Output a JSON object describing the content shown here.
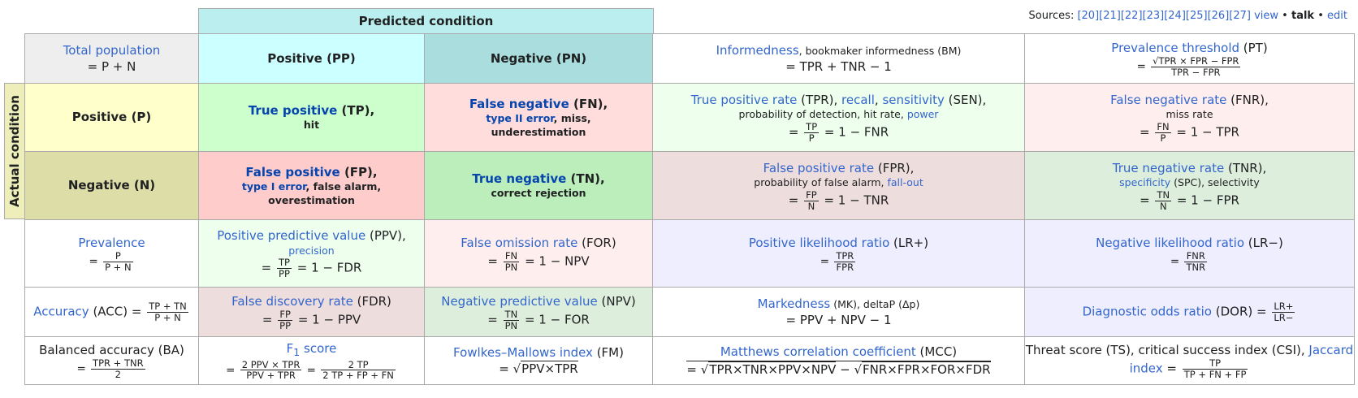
{
  "sources": {
    "label": "Sources:",
    "refs": "[20][21][22][23][24][25][26][27]",
    "view": "view",
    "sep1": "•",
    "talk": "talk",
    "sep2": "•",
    "edit": "edit"
  },
  "headers": {
    "predicted": "Predicted condition",
    "actual": "Actual condition"
  },
  "row0": {
    "total_label": "Total population",
    "total_formula": "= P + N",
    "pp": "Positive (PP)",
    "pn": "Negative (PN)",
    "bm_name": "Informedness",
    "bm_rest": ", bookmaker informedness (BM)",
    "bm_formula": "= TPR + TNR − 1",
    "pt_name": "Prevalence threshold",
    "pt_abbr": " (PT)",
    "pt_eq": "=",
    "pt_num": "√TPR × FPR − FPR",
    "pt_den": "TPR − FPR"
  },
  "row1": {
    "label": "Positive (P)",
    "tp_name": "True positive",
    "tp_abbr": " (TP),",
    "tp_alt": "hit",
    "fn_name": "False negative",
    "fn_abbr": " (FN),",
    "fn_alt1": "type II error",
    "fn_alt2": ", miss,",
    "fn_alt3": "underestimation",
    "tpr_name": "True positive rate",
    "tpr_abbr": " (TPR), ",
    "tpr_recall": "recall",
    "tpr_comma": ", ",
    "tpr_sens": "sensitivity",
    "tpr_sen": " (SEN),",
    "tpr_l2": "probability of detection, hit rate, ",
    "tpr_power": "power",
    "tpr_eq": "=",
    "tpr_num": "TP",
    "tpr_den": "P",
    "tpr_tail": "= 1 − FNR",
    "fnr_name": "False negative rate",
    "fnr_abbr": " (FNR),",
    "fnr_l2": "miss rate",
    "fnr_eq": "=",
    "fnr_num": "FN",
    "fnr_den": "P",
    "fnr_tail": "= 1 − TPR"
  },
  "row2": {
    "label": "Negative (N)",
    "fp_name": "False positive",
    "fp_abbr": " (FP),",
    "fp_alt1": "type I error",
    "fp_alt2": ", false alarm,",
    "fp_alt3": "overestimation",
    "tn_name": "True negative",
    "tn_abbr": " (TN),",
    "tn_alt": "correct rejection",
    "fpr_name": "False positive rate",
    "fpr_abbr": " (FPR),",
    "fpr_l2": "probability of false alarm, ",
    "fpr_fallout": "fall-out",
    "fpr_eq": "=",
    "fpr_num": "FP",
    "fpr_den": "N",
    "fpr_tail": "= 1 − TNR",
    "tnr_name": "True negative rate",
    "tnr_abbr": " (TNR),",
    "tnr_spec": "specificity",
    "tnr_l2": " (SPC), selectivity",
    "tnr_eq": "=",
    "tnr_num": "TN",
    "tnr_den": "N",
    "tnr_tail": "= 1 − FPR"
  },
  "row3": {
    "prev_name": "Prevalence",
    "prev_eq": "=",
    "prev_num": "P",
    "prev_den": "P + N",
    "ppv_name": "Positive predictive value",
    "ppv_abbr": " (PPV),",
    "ppv_prec": "precision",
    "ppv_eq": "=",
    "ppv_num": "TP",
    "ppv_den": "PP",
    "ppv_tail": "= 1 − FDR",
    "for_name": "False omission rate",
    "for_abbr": " (FOR)",
    "for_eq": "=",
    "for_num": "FN",
    "for_den": "PN",
    "for_tail": "= 1 − NPV",
    "lrp_name": "Positive likelihood ratio",
    "lrp_abbr": " (LR+)",
    "lrp_eq": "=",
    "lrp_num": "TPR",
    "lrp_den": "FPR",
    "lrn_name": "Negative likelihood ratio",
    "lrn_abbr": " (LR−)",
    "lrn_eq": "=",
    "lrn_num": "FNR",
    "lrn_den": "TNR"
  },
  "row4": {
    "acc_name": "Accuracy",
    "acc_abbr": " (ACC) =",
    "acc_num": "TP + TN",
    "acc_den": "P + N",
    "fdr_name": "False discovery rate",
    "fdr_abbr": " (FDR)",
    "fdr_eq": "=",
    "fdr_num": "FP",
    "fdr_den": "PP",
    "fdr_tail": "= 1 − PPV",
    "npv_name": "Negative predictive value",
    "npv_abbr": " (NPV)",
    "npv_eq": "=",
    "npv_num": "TN",
    "npv_den": "PN",
    "npv_tail": "= 1 − FOR",
    "mk_name": "Markedness",
    "mk_rest": " (MK), deltaP (Δp)",
    "mk_formula": "= PPV + NPV − 1",
    "dor_name": "Diagnostic odds ratio",
    "dor_abbr": " (DOR) =",
    "dor_num": "LR+",
    "dor_den": "LR−"
  },
  "row5": {
    "ba_name": "Balanced accuracy (BA)",
    "ba_eq": "=",
    "ba_num": "TPR + TNR",
    "ba_den": "2",
    "f1_name": "F",
    "f1_sub": "1",
    "f1_rest": " score",
    "f1_eq1": "=",
    "f1_num1": "2 PPV × TPR",
    "f1_den1": "PPV + TPR",
    "f1_eq2": "=",
    "f1_num2": "2 TP",
    "f1_den2": "2 TP + FP + FN",
    "fm_name": "Fowlkes–Mallows index",
    "fm_abbr": " (FM)",
    "fm_eq": "= √",
    "fm_rad": "PPV×TPR",
    "mcc_name": "Matthews correlation coefficient",
    "mcc_abbr": " (MCC)",
    "mcc_eq": "= √",
    "mcc_rad1": "TPR×TNR×PPV×NPV",
    "mcc_minus": " − √",
    "mcc_rad2": "FNR×FPR×FOR×FDR",
    "ts_l1": "Threat score (TS), critical success index (CSI), ",
    "ts_jac": "Jaccard",
    "ts_index": "index",
    "ts_eq": "=",
    "ts_num": "TP",
    "ts_den": "TP + FN + FP"
  }
}
